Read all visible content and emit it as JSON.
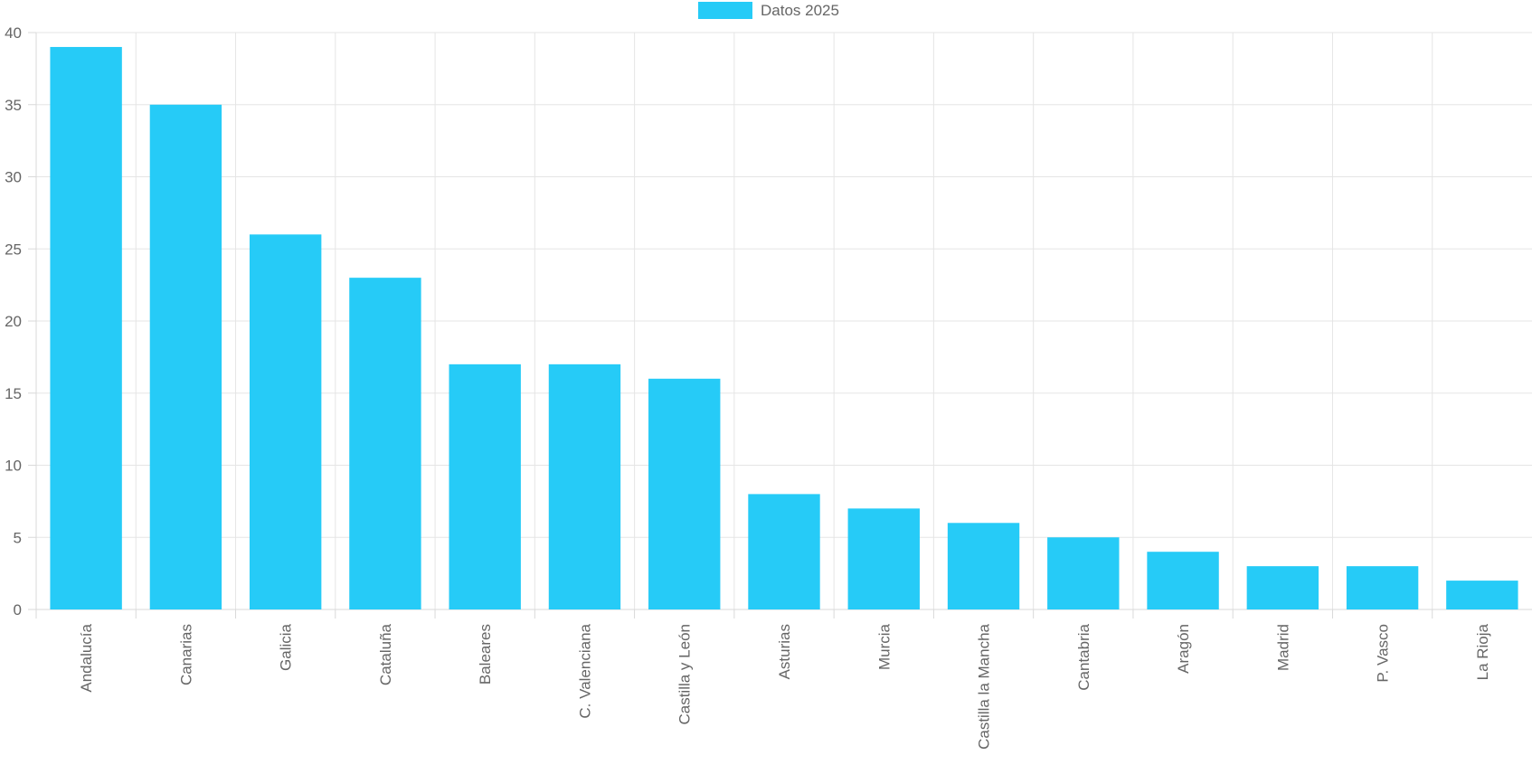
{
  "chart_data": {
    "type": "bar",
    "title": "",
    "xlabel": "",
    "ylabel": "",
    "categories": [
      "Andalucía",
      "Canarias",
      "Galicia",
      "Cataluña",
      "Baleares",
      "C. Valenciana",
      "Castilla y León",
      "Asturias",
      "Murcia",
      "Castilla la Mancha",
      "Cantabria",
      "Aragón",
      "Madrid",
      "P. Vasco",
      "La Rioja"
    ],
    "series": [
      {
        "name": "Datos 2025",
        "color": "#26cbf7",
        "values": [
          39,
          35,
          26,
          23,
          17,
          17,
          16,
          8,
          7,
          6,
          5,
          4,
          3,
          3,
          2
        ]
      }
    ],
    "ylim": [
      0,
      40
    ],
    "yticks": [
      0,
      5,
      10,
      15,
      20,
      25,
      30,
      35,
      40
    ],
    "grid": true,
    "legend_position": "top-center",
    "x_tick_rotation": "vertical"
  }
}
